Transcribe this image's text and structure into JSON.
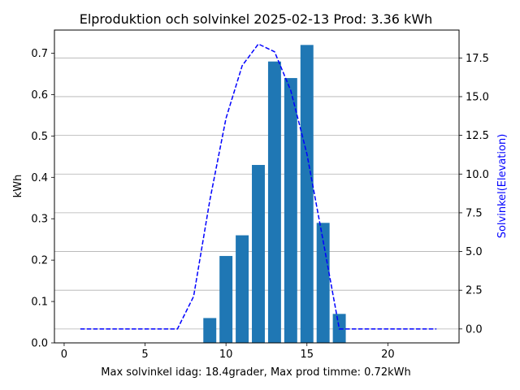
{
  "chart_data": {
    "type": "bar",
    "title": "Elproduktion och solvinkel 2025-02-13 Prod: 3.36 kWh",
    "xlabel": "Max solvinkel idag: 18.4grader, Max prod timme: 0.72kWh",
    "ylabel": "kWh",
    "y2label": "Solvinkel(Elevation)",
    "xlim": [
      -0.6,
      24.4
    ],
    "ylim": [
      0,
      0.756
    ],
    "y2lim": [
      -0.9,
      19.3
    ],
    "xticks": [
      0,
      5,
      10,
      15,
      20
    ],
    "yticks": [
      0.0,
      0.1,
      0.2,
      0.3,
      0.4,
      0.5,
      0.6,
      0.7
    ],
    "y2ticks": [
      0.0,
      2.5,
      5.0,
      7.5,
      10.0,
      12.5,
      15.0,
      17.5
    ],
    "grid": "horizontal lines at right-axis ticks",
    "series": [
      {
        "axis": "left",
        "type": "bar",
        "color": "#1f77b4",
        "x": [
          9,
          10,
          11,
          12,
          13,
          14,
          15,
          16,
          17
        ],
        "values": [
          0.06,
          0.21,
          0.26,
          0.43,
          0.68,
          0.64,
          0.72,
          0.29,
          0.07
        ]
      },
      {
        "axis": "right",
        "type": "line",
        "style": "dashed",
        "color": "#0000ff",
        "x": [
          1,
          2,
          3,
          4,
          5,
          6,
          7,
          8,
          9,
          10,
          11,
          12,
          13,
          14,
          15,
          16,
          17,
          18,
          19,
          20,
          21,
          22,
          23
        ],
        "values": [
          0,
          0,
          0,
          0,
          0,
          0,
          0,
          2.1,
          8.3,
          13.6,
          17.0,
          18.4,
          17.9,
          15.4,
          11.3,
          5.7,
          0,
          0,
          0,
          0,
          0,
          0,
          0
        ]
      }
    ]
  }
}
